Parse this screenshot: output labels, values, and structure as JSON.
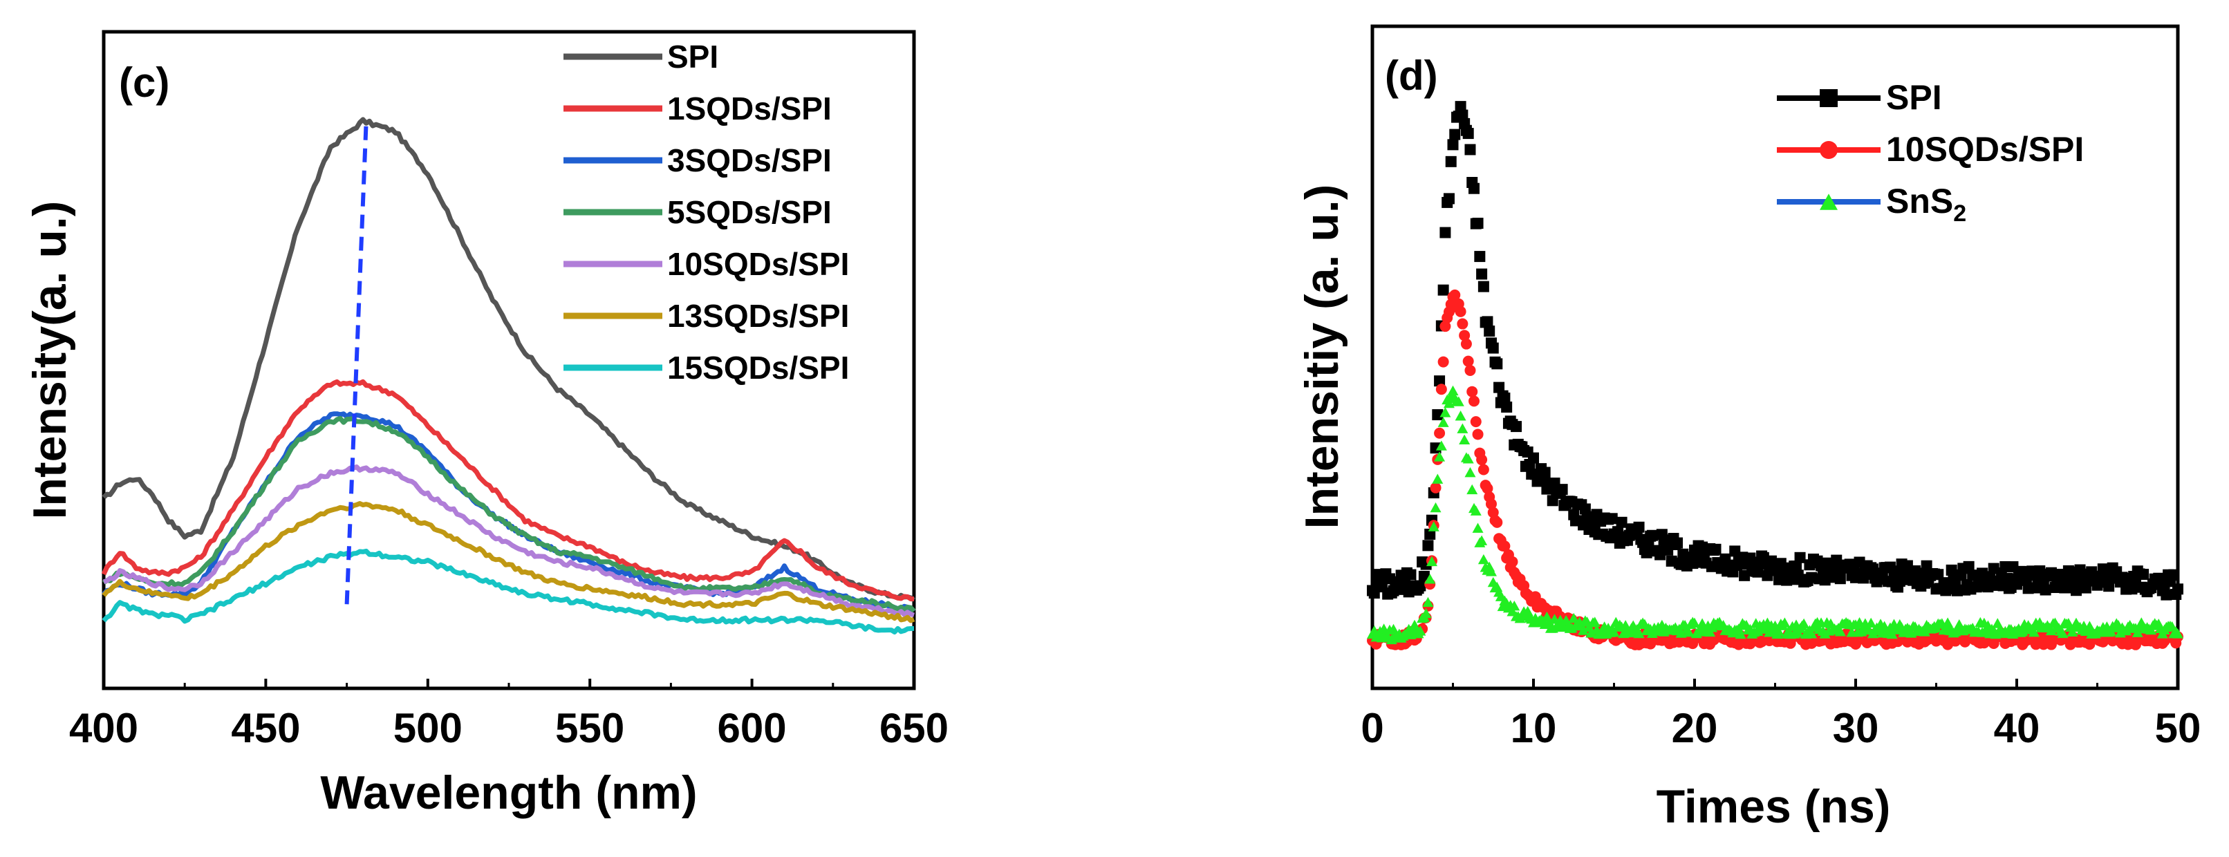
{
  "chart_data": [
    {
      "type": "line",
      "panel_label": "(c)",
      "title": "",
      "xlabel": "Wavelength (nm)",
      "ylabel": "Intensity(a. u.)",
      "xlim": [
        400,
        650
      ],
      "ylim": [
        0,
        1
      ],
      "x_ticks": [
        "400",
        "450",
        "500",
        "550",
        "600",
        "650"
      ],
      "y_ticks_shown": false,
      "legend_position": "top-right",
      "annotation": "dashed blue line marking peak shift from ~475 nm to ~481 nm",
      "peak_guide": {
        "x": [
          475,
          481
        ],
        "y": [
          0.08,
          1.0
        ],
        "color": "#1f3cff"
      },
      "x_points": [
        400,
        405,
        410,
        415,
        420,
        425,
        430,
        440,
        450,
        460,
        470,
        480,
        490,
        500,
        510,
        520,
        530,
        540,
        550,
        560,
        570,
        580,
        590,
        600,
        605,
        610,
        615,
        620,
        630,
        640,
        650
      ],
      "series": [
        {
          "name": "SPI",
          "color": "#555555",
          "values": [
            0.28,
            0.31,
            0.32,
            0.29,
            0.24,
            0.21,
            0.22,
            0.36,
            0.58,
            0.8,
            0.95,
            1.0,
            0.98,
            0.9,
            0.78,
            0.66,
            0.56,
            0.49,
            0.44,
            0.38,
            0.32,
            0.27,
            0.24,
            0.21,
            0.2,
            0.19,
            0.18,
            0.16,
            0.12,
            0.1,
            0.09
          ]
        },
        {
          "name": "1SQDs/SPI",
          "color": "#e8373b",
          "values": [
            0.14,
            0.18,
            0.15,
            0.14,
            0.14,
            0.15,
            0.17,
            0.26,
            0.36,
            0.45,
            0.5,
            0.5,
            0.48,
            0.42,
            0.36,
            0.3,
            0.24,
            0.21,
            0.19,
            0.16,
            0.14,
            0.13,
            0.13,
            0.14,
            0.17,
            0.2,
            0.18,
            0.15,
            0.12,
            0.1,
            0.09
          ]
        },
        {
          "name": "3SQDs/SPI",
          "color": "#1f5fd1",
          "values": [
            0.1,
            0.12,
            0.11,
            0.1,
            0.1,
            0.1,
            0.12,
            0.22,
            0.31,
            0.4,
            0.44,
            0.44,
            0.42,
            0.37,
            0.3,
            0.25,
            0.21,
            0.18,
            0.16,
            0.14,
            0.12,
            0.11,
            0.1,
            0.11,
            0.13,
            0.15,
            0.13,
            0.11,
            0.09,
            0.08,
            0.07
          ]
        },
        {
          "name": "5SQDs/SPI",
          "color": "#3e9b5f",
          "values": [
            0.12,
            0.14,
            0.13,
            0.12,
            0.12,
            0.12,
            0.14,
            0.22,
            0.31,
            0.39,
            0.43,
            0.43,
            0.41,
            0.36,
            0.3,
            0.25,
            0.21,
            0.18,
            0.17,
            0.15,
            0.13,
            0.11,
            0.11,
            0.11,
            0.12,
            0.13,
            0.12,
            0.1,
            0.09,
            0.08,
            0.07
          ]
        },
        {
          "name": "10SQDs/SPI",
          "color": "#b07ed8",
          "values": [
            0.12,
            0.14,
            0.13,
            0.12,
            0.11,
            0.11,
            0.12,
            0.18,
            0.24,
            0.3,
            0.33,
            0.34,
            0.33,
            0.29,
            0.25,
            0.21,
            0.18,
            0.16,
            0.15,
            0.13,
            0.11,
            0.1,
            0.1,
            0.1,
            0.11,
            0.12,
            0.11,
            0.1,
            0.08,
            0.07,
            0.06
          ]
        },
        {
          "name": "13SQDs/SPI",
          "color": "#c09813",
          "values": [
            0.1,
            0.12,
            0.11,
            0.1,
            0.1,
            0.09,
            0.1,
            0.14,
            0.19,
            0.23,
            0.26,
            0.27,
            0.26,
            0.23,
            0.2,
            0.17,
            0.14,
            0.12,
            0.11,
            0.1,
            0.09,
            0.08,
            0.08,
            0.08,
            0.09,
            0.1,
            0.09,
            0.08,
            0.07,
            0.06,
            0.05
          ]
        },
        {
          "name": "15SQDs/SPI",
          "color": "#17c4c4",
          "values": [
            0.05,
            0.08,
            0.07,
            0.06,
            0.06,
            0.05,
            0.06,
            0.09,
            0.12,
            0.15,
            0.17,
            0.18,
            0.17,
            0.16,
            0.14,
            0.12,
            0.1,
            0.09,
            0.08,
            0.07,
            0.06,
            0.05,
            0.05,
            0.05,
            0.05,
            0.05,
            0.05,
            0.05,
            0.04,
            0.03,
            0.03
          ]
        }
      ]
    },
    {
      "type": "scatter",
      "panel_label": "(d)",
      "title": "",
      "xlabel": "Times (ns)",
      "ylabel": "Intensitiy (a. u.)",
      "xlim": [
        0,
        50
      ],
      "ylim": [
        0,
        1
      ],
      "x_ticks": [
        "0",
        "10",
        "20",
        "30",
        "40",
        "50"
      ],
      "y_ticks_shown": false,
      "legend_position": "top-right",
      "x_points": [
        0,
        2,
        3,
        3.5,
        4,
        4.5,
        5,
        5.5,
        6,
        6.5,
        7,
        8,
        9,
        10,
        11,
        12,
        14,
        16,
        18,
        20,
        25,
        30,
        35,
        40,
        45,
        50
      ],
      "series": [
        {
          "name": "SPI",
          "color": "#000000",
          "marker": "square",
          "values": [
            0.12,
            0.12,
            0.13,
            0.18,
            0.38,
            0.75,
            0.93,
            1.0,
            0.92,
            0.78,
            0.62,
            0.47,
            0.38,
            0.33,
            0.3,
            0.27,
            0.23,
            0.21,
            0.19,
            0.17,
            0.15,
            0.14,
            0.13,
            0.13,
            0.13,
            0.12
          ]
        },
        {
          "name": "10SQDs/SPI",
          "color": "#ff2020",
          "marker": "circle",
          "values": [
            0.02,
            0.02,
            0.03,
            0.08,
            0.32,
            0.58,
            0.65,
            0.62,
            0.52,
            0.4,
            0.3,
            0.2,
            0.13,
            0.09,
            0.07,
            0.05,
            0.03,
            0.02,
            0.02,
            0.02,
            0.02,
            0.02,
            0.02,
            0.02,
            0.02,
            0.02
          ]
        },
        {
          "name": "SnS",
          "subscript": "2",
          "color": "#22ee22",
          "line_color": "#1f5fd1",
          "marker": "triangle",
          "values": [
            0.03,
            0.03,
            0.04,
            0.09,
            0.3,
            0.44,
            0.48,
            0.43,
            0.33,
            0.23,
            0.16,
            0.09,
            0.07,
            0.06,
            0.05,
            0.05,
            0.04,
            0.04,
            0.04,
            0.04,
            0.04,
            0.04,
            0.04,
            0.04,
            0.04,
            0.04
          ]
        }
      ]
    }
  ]
}
